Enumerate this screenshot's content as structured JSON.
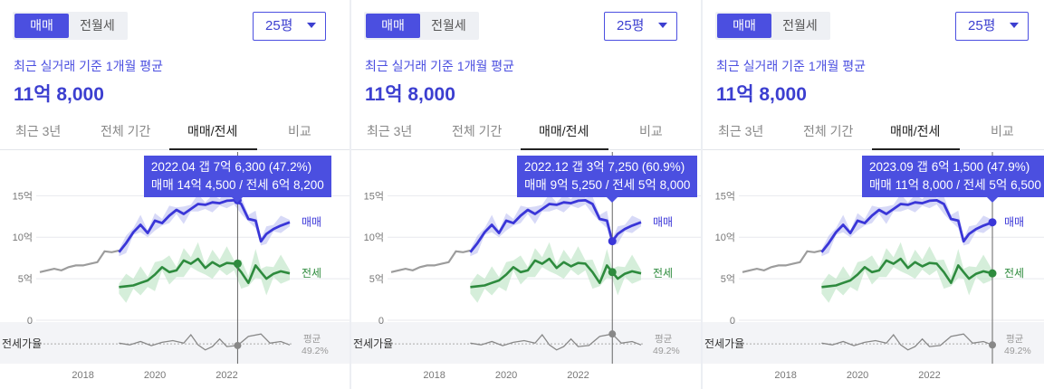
{
  "colors": {
    "accent": "#4b4fe0",
    "sale_line": "#3a36d8",
    "sale_band": "#b7b9f0",
    "jeonse_line": "#2e8b3e",
    "jeonse_band": "#b9e3c2",
    "history_line": "#9c9c9c",
    "ratio_line": "#888888"
  },
  "panels": [
    {
      "toggle": {
        "active": "매매",
        "inactive": "전월세"
      },
      "size_select": "25평",
      "subtitle": "최근 실거래 기준 1개월 평균",
      "price": "11억 8,000",
      "tabs": [
        "최근 3년",
        "전체 기간",
        "매매/전세",
        "비교"
      ],
      "active_tab": 2,
      "tooltip": {
        "line1": "2022.04  갭 7억 6,300 (47.2%)",
        "line2": "매매 14억 4,500 / 전세 6억 8,200"
      }
    },
    {
      "toggle": {
        "active": "매매",
        "inactive": "전월세"
      },
      "size_select": "25평",
      "subtitle": "최근 실거래 기준 1개월 평균",
      "price": "11억 8,000",
      "tabs": [
        "최근 3년",
        "전체 기간",
        "매매/전세",
        "비교"
      ],
      "active_tab": 2,
      "tooltip": {
        "line1": "2022.12  갭 3억 7,250 (60.9%)",
        "line2": "매매 9억 5,250 / 전세 5억 8,000"
      }
    },
    {
      "toggle": {
        "active": "매매",
        "inactive": "전월세"
      },
      "size_select": "25평",
      "subtitle": "최근 실거래 기준 1개월 평균",
      "price": "11억 8,000",
      "tabs": [
        "최근 3년",
        "전체 기간",
        "매매/전세",
        "비교"
      ],
      "active_tab": 2,
      "tooltip": {
        "line1": "2023.09  갭 6억 1,500 (47.9%)",
        "line2": "매매 11억 8,000 / 전세 5억 6,500"
      }
    }
  ],
  "chart_data": [
    {
      "type": "line",
      "title": "",
      "xlabel": "",
      "ylabel": "",
      "ylim": [
        0,
        17
      ],
      "y_ticks": [
        0,
        5,
        10,
        15
      ],
      "y_tick_labels": [
        "0",
        "5억",
        "10억",
        "15억"
      ],
      "x_ticks": [
        2018,
        2020,
        2022
      ],
      "x_tick_labels": [
        "2018",
        "2020",
        "2022"
      ],
      "xlim": [
        2016.8,
        2023.8
      ],
      "ratio_label": "전세가율",
      "ratio_avg_label": "평균",
      "ratio_avg_value": "49.2%",
      "ratio_ylim": [
        30,
        75
      ],
      "series": [
        {
          "name": "",
          "x": [
            2016.8,
            2017.0,
            2017.2,
            2017.4,
            2017.6,
            2017.8,
            2018.0,
            2018.2,
            2018.4,
            2018.6,
            2018.8,
            2019.0
          ],
          "values": [
            5.8,
            6.0,
            6.2,
            6.0,
            6.4,
            6.6,
            6.6,
            6.8,
            7.0,
            8.3,
            8.2,
            8.4
          ]
        },
        {
          "name": "매매",
          "x": [
            2019.0,
            2019.2,
            2019.4,
            2019.6,
            2019.8,
            2020.0,
            2020.2,
            2020.4,
            2020.6,
            2020.8,
            2021.0,
            2021.2,
            2021.4,
            2021.6,
            2021.8,
            2022.0,
            2022.2,
            2022.4,
            2022.6,
            2022.8,
            2022.95,
            2023.1,
            2023.3,
            2023.5,
            2023.75
          ],
          "values": [
            8.2,
            9.3,
            10.6,
            11.5,
            10.5,
            12.0,
            11.7,
            12.6,
            13.3,
            12.8,
            13.4,
            14.0,
            13.9,
            14.2,
            14.1,
            14.4,
            14.45,
            14.0,
            12.2,
            12.0,
            9.5,
            10.4,
            11.0,
            11.4,
            11.8
          ]
        },
        {
          "name": "전세",
          "x": [
            2019.0,
            2019.2,
            2019.4,
            2019.6,
            2019.8,
            2020.0,
            2020.2,
            2020.4,
            2020.6,
            2020.8,
            2021.0,
            2021.2,
            2021.4,
            2021.6,
            2021.8,
            2022.0,
            2022.2,
            2022.4,
            2022.6,
            2022.8,
            2022.95,
            2023.1,
            2023.3,
            2023.5,
            2023.75
          ],
          "values": [
            4.0,
            4.1,
            4.2,
            4.5,
            4.8,
            5.5,
            6.4,
            5.8,
            6.0,
            7.2,
            6.8,
            7.4,
            6.3,
            7.0,
            6.5,
            6.9,
            6.82,
            5.8,
            4.5,
            6.6,
            5.8,
            5.0,
            5.6,
            5.9,
            5.65
          ]
        },
        {
          "name": "전세가율",
          "x": [
            2019.0,
            2019.3,
            2019.6,
            2019.9,
            2020.2,
            2020.5,
            2020.8,
            2021.0,
            2021.2,
            2021.4,
            2021.6,
            2021.8,
            2022.0,
            2022.3,
            2022.6,
            2022.95,
            2023.2,
            2023.5,
            2023.75
          ],
          "values": [
            50,
            48,
            52,
            47,
            51,
            53,
            50,
            60,
            48,
            42,
            46,
            55,
            46,
            47.2,
            58,
            60.9,
            50,
            52,
            47.9
          ]
        }
      ],
      "highlights": [
        {
          "x": 2022.3,
          "sale": 14.45,
          "jeonse": 6.82,
          "ratio": 47.2
        },
        {
          "x": 2022.95,
          "sale": 9.525,
          "jeonse": 5.8,
          "ratio": 60.9
        },
        {
          "x": 2023.75,
          "sale": 11.8,
          "jeonse": 5.65,
          "ratio": 47.9
        }
      ]
    }
  ]
}
